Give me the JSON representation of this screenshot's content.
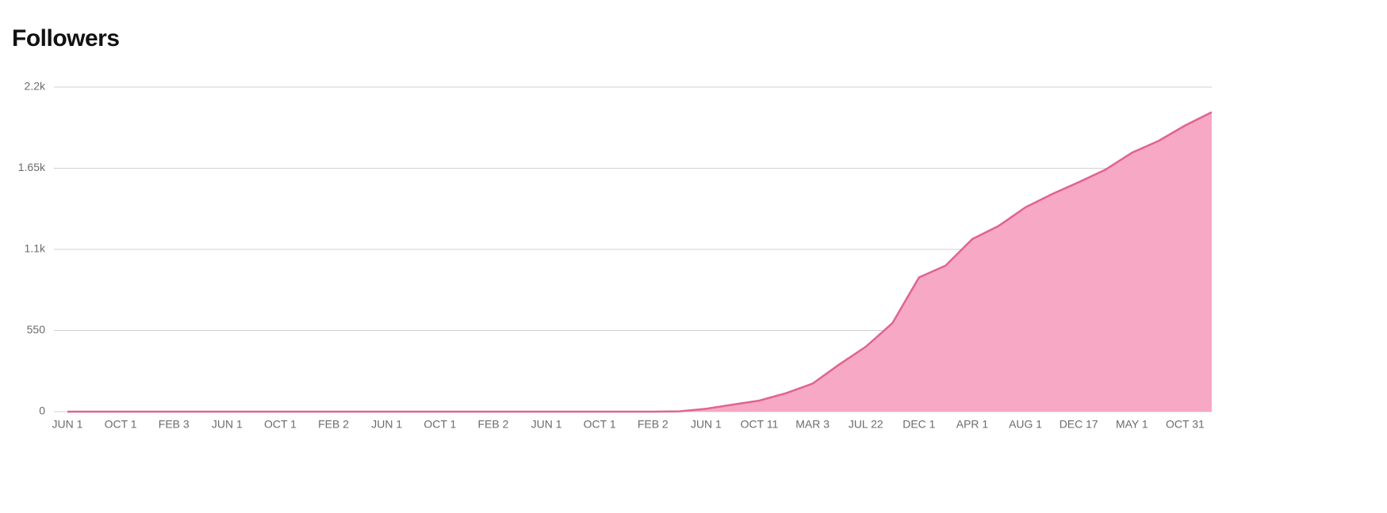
{
  "chart_data": {
    "type": "area",
    "title": "Followers",
    "categories": [
      "JUN 1",
      null,
      "OCT 1",
      null,
      "FEB 3",
      null,
      "JUN 1",
      null,
      "OCT 1",
      null,
      "FEB 2",
      null,
      "JUN 1",
      null,
      "OCT 1",
      null,
      "FEB 2",
      null,
      "JUN 1",
      null,
      "OCT 1",
      null,
      "FEB 2",
      null,
      "JUN 1",
      null,
      "OCT 11",
      null,
      "MAR 3",
      null,
      "JUL 22",
      null,
      "DEC 1",
      null,
      "APR 1",
      null,
      "AUG 1",
      null,
      "DEC 17",
      null,
      "MAY 1",
      null,
      "OCT 31",
      null
    ],
    "values": [
      0,
      0,
      0,
      0,
      0,
      0,
      0,
      0,
      0,
      0,
      0,
      0,
      0,
      0,
      0,
      0,
      0,
      0,
      0,
      0,
      0,
      0,
      0,
      2,
      20,
      48,
      75,
      125,
      190,
      320,
      440,
      600,
      910,
      990,
      1170,
      1260,
      1385,
      1475,
      1555,
      1640,
      1755,
      1835,
      1940,
      2030
    ],
    "color": "#f7a8c4",
    "line_color": "#e0648f",
    "ylim": [
      0,
      2200
    ],
    "yticks": [
      0,
      550,
      {
        "value": 1100,
        "label": "1.1k"
      },
      {
        "value": 1650,
        "label": "1.65k"
      },
      {
        "value": 2200,
        "label": "2.2k"
      }
    ],
    "grid": true
  }
}
